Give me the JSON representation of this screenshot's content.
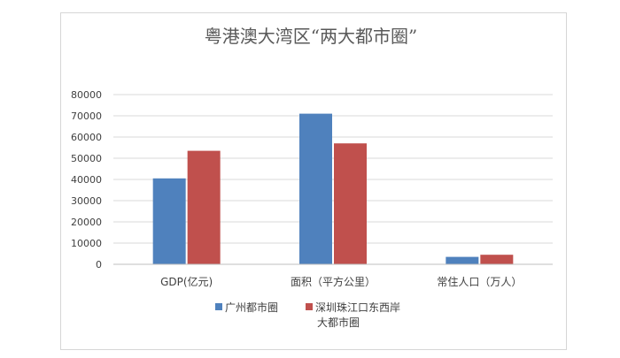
{
  "chart_data": {
    "type": "bar",
    "title": "粤港澳大湾区“两大都市圈”",
    "categories": [
      "GDP(亿元)",
      "面积（平方公里）",
      "常住人口（万人）"
    ],
    "series": [
      {
        "name": "广州都市圈",
        "values": [
          40500,
          71000,
          3500
        ],
        "color": "#4f81bd"
      },
      {
        "name": "深圳珠江口东西岸大都市圈",
        "name_lines": [
          "深圳珠江口东西岸",
          "大都市圈"
        ],
        "values": [
          53500,
          57000,
          4500
        ],
        "color": "#c0504d"
      }
    ],
    "yticks": [
      0,
      10000,
      20000,
      30000,
      40000,
      50000,
      60000,
      70000,
      80000
    ],
    "ylim": [
      0,
      80000
    ],
    "grid": true,
    "legend_position": "bottom"
  }
}
